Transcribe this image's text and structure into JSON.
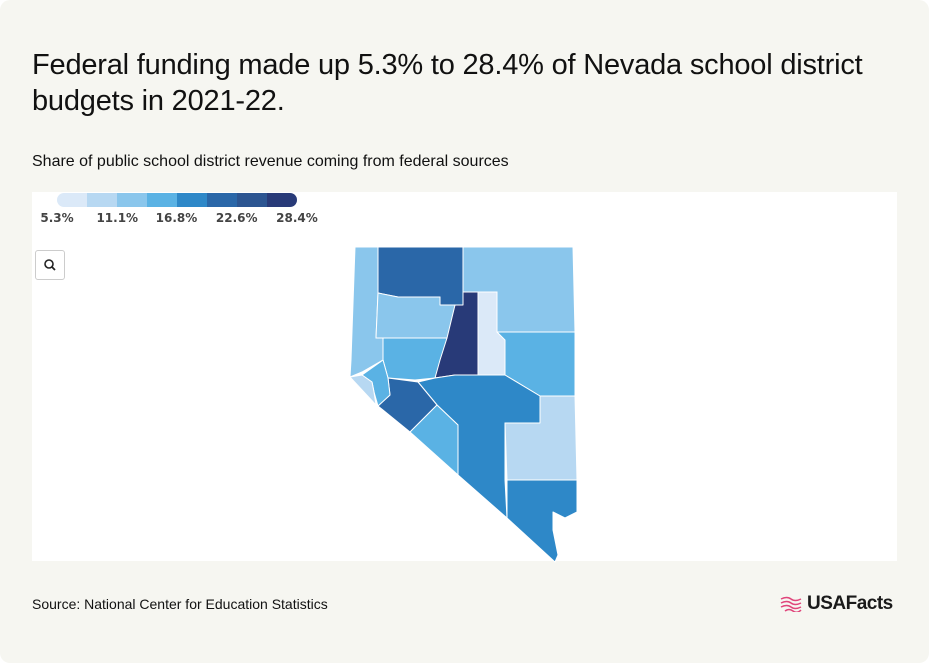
{
  "header": {
    "title": "Federal funding made up 5.3% to 28.4% of Nevada school district budgets in 2021-22.",
    "subtitle": "Share of public school district revenue coming from federal sources"
  },
  "legend": {
    "ticks": [
      {
        "value": 5.3,
        "label": "5.3%"
      },
      {
        "value": 11.1,
        "label": "11.1%"
      },
      {
        "value": 16.8,
        "label": "16.8%"
      },
      {
        "value": 22.6,
        "label": "22.6%"
      },
      {
        "value": 28.4,
        "label": "28.4%"
      }
    ],
    "colors": [
      "#dbe9f8",
      "#b7d8f2",
      "#8ac6ec",
      "#5ab2e4",
      "#2e88c8",
      "#2a67a8",
      "#2c5591",
      "#283a78"
    ]
  },
  "footer": {
    "source": "Source: National Center for Education Statistics",
    "logo": "USAFacts"
  }
}
